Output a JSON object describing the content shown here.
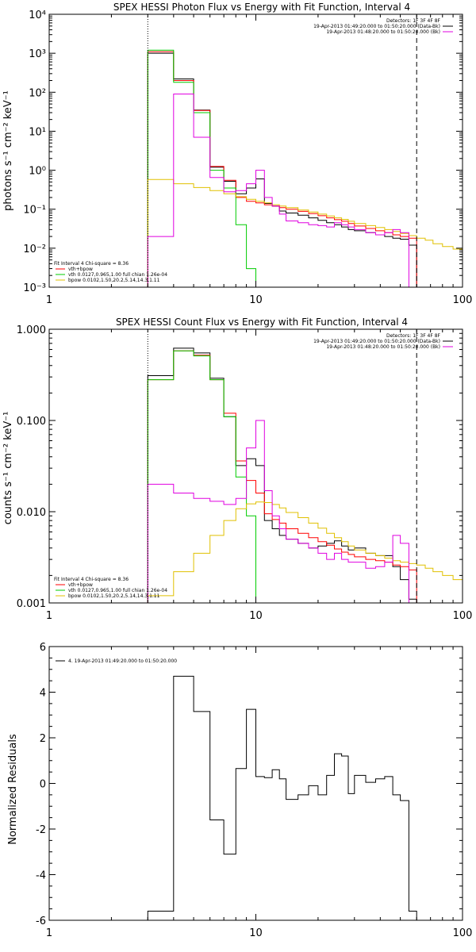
{
  "colors": {
    "data": "#000000",
    "model": "#ff0000",
    "vth": "#00cc00",
    "bpow": "#e0c000",
    "bkg": "#e000e0"
  },
  "chart_data": [
    {
      "type": "line",
      "title": "SPEX HESSI Photon Flux vs Energy with Fit Function, Interval 4",
      "xlabel": "",
      "ylabel": "photons s⁻¹ cm⁻² keV⁻¹",
      "xscale": "log",
      "yscale": "log",
      "xlim": [
        1,
        100
      ],
      "ylim": [
        0.001,
        10000
      ],
      "xticks": [
        {
          "v": 1,
          "label": "1"
        },
        {
          "v": 10,
          "label": "10"
        },
        {
          "v": 100,
          "label": "100"
        }
      ],
      "yticks": [
        {
          "v": 0.001,
          "label": "10⁻³"
        },
        {
          "v": 0.01,
          "label": "10⁻²"
        },
        {
          "v": 0.1,
          "label": "10⁻¹"
        },
        {
          "v": 1,
          "label": "10⁰"
        },
        {
          "v": 10,
          "label": "10¹"
        },
        {
          "v": 100,
          "label": "10²"
        },
        {
          "v": 1000,
          "label": "10³"
        },
        {
          "v": 10000,
          "label": "10⁴"
        }
      ],
      "vlines": [
        {
          "x": 3,
          "style": "dotted"
        },
        {
          "x": 60,
          "style": "dashed"
        }
      ],
      "info_lines": [
        "Detectors: 1F 3F 4F 8F",
        "19-Apr-2013 01:49:20.000 to 01:50:20.000 (Data-Bk)",
        "19-Apr-2013 01:48:20.000 to 01:50:20.000 (Bk)"
      ],
      "fit_info": [
        "Fit Interval 4   Chi-square = 8.36"
      ],
      "legend_items": [
        {
          "color": "#ff0000",
          "text": "vth+bpow"
        },
        {
          "color": "#00cc00",
          "text": "vth 0.0127,0.965,1.00  full chian 1.26e-04"
        },
        {
          "color": "#e0c000",
          "text": "bpow 0.0102,1.50,20.2,5.14,14.3,1.11"
        }
      ],
      "edges": [
        3,
        4,
        5,
        6,
        7,
        8,
        9,
        10,
        11,
        12,
        13,
        14,
        16,
        18,
        20,
        22,
        24,
        26,
        28,
        30,
        34,
        38,
        42,
        46,
        50,
        55,
        60,
        66,
        72,
        80,
        90,
        100
      ],
      "series": [
        {
          "name": "Data-Bk",
          "color": "#000000",
          "values": [
            1000,
            220,
            35,
            1.2,
            0.52,
            0.25,
            0.35,
            0.6,
            0.14,
            0.12,
            0.09,
            0.08,
            0.07,
            0.06,
            0.052,
            0.045,
            0.04,
            0.035,
            0.03,
            0.028,
            0.025,
            0.022,
            0.02,
            0.018,
            0.017,
            0.012
          ]
        },
        {
          "name": "vth+bpow",
          "color": "#ff0000",
          "values": [
            1100,
            200,
            34,
            1.25,
            0.55,
            0.2,
            0.16,
            0.145,
            0.13,
            0.12,
            0.11,
            0.1,
            0.088,
            0.077,
            0.068,
            0.06,
            0.054,
            0.049,
            0.043,
            0.037,
            0.032,
            0.028,
            0.025,
            0.022,
            0.02,
            0.018
          ]
        },
        {
          "name": "vth",
          "color": "#00cc00",
          "values": [
            1200,
            180,
            30,
            1.0,
            0.35,
            0.04,
            0.003,
            0.0008
          ]
        },
        {
          "name": "bpow",
          "color": "#e0c000",
          "values": [
            0.58,
            0.45,
            0.36,
            0.3,
            0.25,
            0.21,
            0.18,
            0.16,
            0.145,
            0.13,
            0.12,
            0.11,
            0.095,
            0.085,
            0.075,
            0.067,
            0.06,
            0.055,
            0.049,
            0.043,
            0.038,
            0.034,
            0.03,
            0.027,
            0.024,
            0.021,
            0.018,
            0.016,
            0.013,
            0.011,
            0.0095,
            0.008
          ]
        },
        {
          "name": "Bk",
          "color": "#e000e0",
          "values": [
            0.02,
            90,
            7,
            0.65,
            0.28,
            0.3,
            0.45,
            1.0,
            0.2,
            0.12,
            0.075,
            0.05,
            0.045,
            0.04,
            0.038,
            0.035,
            0.045,
            0.04,
            0.035,
            0.03,
            0.025,
            0.022,
            0.025,
            0.03,
            0.025
          ]
        }
      ]
    },
    {
      "type": "line",
      "title": "SPEX HESSI Count Flux vs Energy with Fit Function, Interval 4",
      "xlabel": "",
      "ylabel": "counts s⁻¹ cm⁻² keV⁻¹",
      "xscale": "log",
      "yscale": "log",
      "xlim": [
        1,
        100
      ],
      "ylim": [
        0.001,
        1
      ],
      "xticks": [
        {
          "v": 1,
          "label": "1"
        },
        {
          "v": 10,
          "label": "10"
        },
        {
          "v": 100,
          "label": "100"
        }
      ],
      "yticks": [
        {
          "v": 0.001,
          "label": "0.001"
        },
        {
          "v": 0.01,
          "label": "0.010"
        },
        {
          "v": 0.1,
          "label": "0.100"
        },
        {
          "v": 1,
          "label": "1.000"
        }
      ],
      "vlines": [
        {
          "x": 3,
          "style": "dotted"
        },
        {
          "x": 60,
          "style": "dashed"
        }
      ],
      "info_lines": [
        "Detectors: 1F 3F 4F 8F",
        "19-Apr-2013 01:49:20.000 to 01:50:20.000 (Data-Bk)",
        "19-Apr-2013 01:48:20.000 to 01:50:20.000 (Bk)"
      ],
      "fit_info": [
        "Fit Interval 4   Chi-square = 8.36"
      ],
      "legend_items": [
        {
          "color": "#ff0000",
          "text": "vth+bpow"
        },
        {
          "color": "#00cc00",
          "text": "vth 0.0127,0.965,1.00  full chian 1.26e-04"
        },
        {
          "color": "#e0c000",
          "text": "bpow 0.0102,1.50,20.2,5.14,14.3,1.11"
        }
      ],
      "edges": [
        3,
        4,
        5,
        6,
        7,
        8,
        9,
        10,
        11,
        12,
        13,
        14,
        16,
        18,
        20,
        22,
        24,
        26,
        28,
        30,
        34,
        38,
        42,
        46,
        50,
        55,
        60,
        66,
        72,
        80,
        90,
        100
      ],
      "series": [
        {
          "name": "Data-Bk",
          "color": "#000000",
          "values": [
            0.31,
            0.62,
            0.55,
            0.29,
            0.11,
            0.032,
            0.038,
            0.032,
            0.008,
            0.0065,
            0.0055,
            0.005,
            0.0045,
            0.004,
            0.0042,
            0.0045,
            0.0048,
            0.0042,
            0.0038,
            0.004,
            0.0035,
            0.0033,
            0.0033,
            0.0025,
            0.0018,
            0.0011
          ]
        },
        {
          "name": "vth+bpow",
          "color": "#ff0000",
          "values": [
            0.28,
            0.58,
            0.52,
            0.28,
            0.12,
            0.036,
            0.022,
            0.016,
            0.0095,
            0.0082,
            0.0075,
            0.0065,
            0.0058,
            0.0052,
            0.0047,
            0.0043,
            0.0039,
            0.0036,
            0.0034,
            0.0032,
            0.003,
            0.0029,
            0.0028,
            0.0026,
            0.0025,
            0.0023
          ]
        },
        {
          "name": "vth",
          "color": "#00cc00",
          "values": [
            0.28,
            0.58,
            0.51,
            0.28,
            0.11,
            0.024,
            0.009,
            0.0009
          ]
        },
        {
          "name": "bpow",
          "color": "#e0c000",
          "values": [
            0.0012,
            0.0022,
            0.0035,
            0.0055,
            0.008,
            0.0108,
            0.0122,
            0.0128,
            0.0126,
            0.012,
            0.011,
            0.0098,
            0.0086,
            0.0075,
            0.0066,
            0.0058,
            0.0052,
            0.0047,
            0.0042,
            0.0038,
            0.0035,
            0.0033,
            0.0031,
            0.0029,
            0.0028,
            0.0027,
            0.0026,
            0.0024,
            0.0022,
            0.002,
            0.0018
          ]
        },
        {
          "name": "Bk",
          "color": "#e000e0",
          "values": [
            0.02,
            0.016,
            0.014,
            0.013,
            0.012,
            0.014,
            0.05,
            0.1,
            0.017,
            0.009,
            0.0065,
            0.005,
            0.0045,
            0.004,
            0.0035,
            0.003,
            0.0035,
            0.003,
            0.0028,
            0.0028,
            0.0024,
            0.0025,
            0.0028,
            0.0055,
            0.0045
          ]
        }
      ]
    },
    {
      "type": "line",
      "title": "",
      "xlabel": "",
      "ylabel": "Normalized Residuals",
      "xscale": "log",
      "yscale": "linear",
      "xlim": [
        1,
        100
      ],
      "ylim": [
        -6,
        6
      ],
      "xticks": [
        {
          "v": 1,
          "label": "1"
        },
        {
          "v": 10,
          "label": "10"
        },
        {
          "v": 100,
          "label": "100"
        }
      ],
      "yticks": [
        {
          "v": -6,
          "label": "-6"
        },
        {
          "v": -4,
          "label": "-4"
        },
        {
          "v": -2,
          "label": "-2"
        },
        {
          "v": 0,
          "label": "0"
        },
        {
          "v": 2,
          "label": "2"
        },
        {
          "v": 4,
          "label": "4"
        },
        {
          "v": 6,
          "label": "6"
        }
      ],
      "vlines": [],
      "info_lines": [],
      "fit_info": [],
      "legend_items": [
        {
          "color": "#000000",
          "text": "4. 19-Apr-2013 01:49:20.000 to 01:50:20.000"
        }
      ],
      "edges": [
        3,
        4,
        5,
        6,
        7,
        8,
        9,
        10,
        11,
        12,
        13,
        14,
        16,
        18,
        20,
        22,
        24,
        26,
        28,
        30,
        34,
        38,
        42,
        46,
        50,
        55,
        60
      ],
      "series": [
        {
          "name": "Residuals",
          "color": "#000000",
          "values": [
            -5.6,
            4.7,
            3.15,
            -1.6,
            -3.1,
            0.65,
            3.25,
            0.3,
            0.25,
            0.6,
            0.2,
            -0.7,
            -0.5,
            -0.1,
            -0.5,
            0.35,
            1.3,
            1.2,
            -0.45,
            0.35,
            0.05,
            0.2,
            0.3,
            -0.5,
            -0.75,
            -5.6
          ]
        }
      ]
    }
  ]
}
